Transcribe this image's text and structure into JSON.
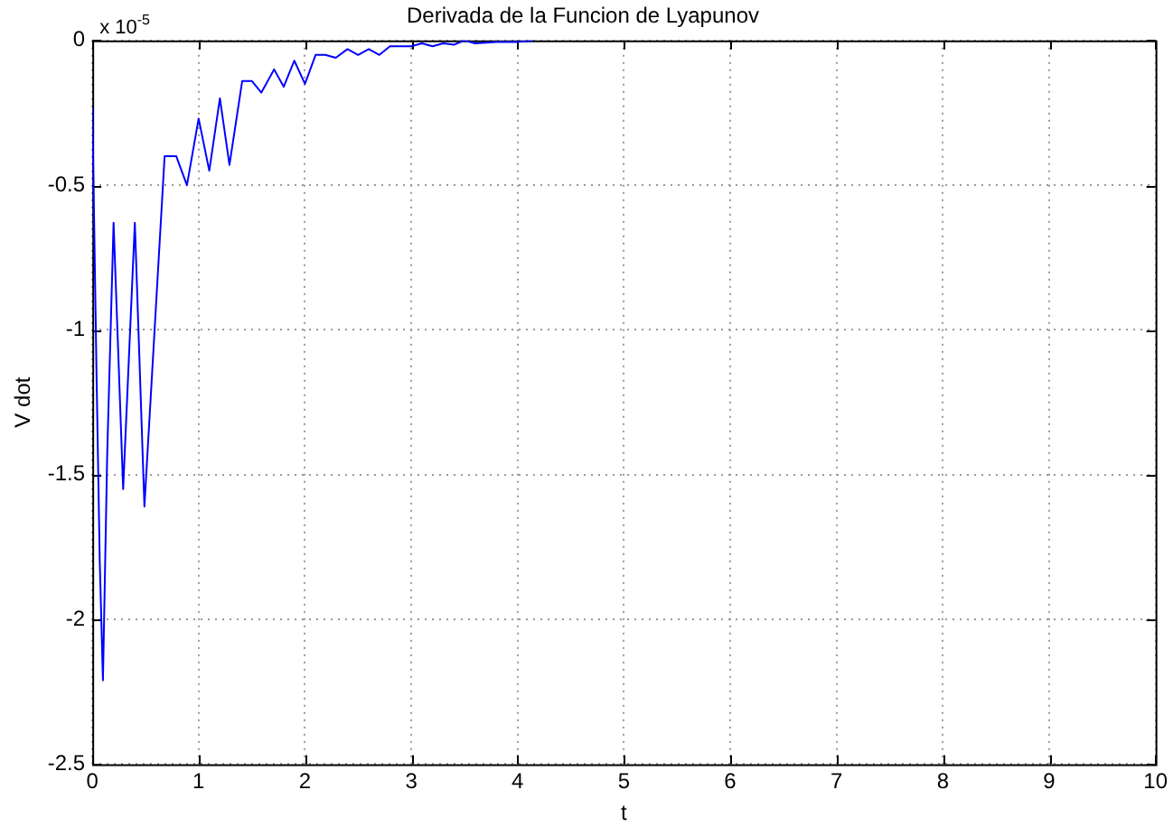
{
  "chart_data": {
    "type": "line",
    "title": "Derivada de la Funcion de Lyapunov",
    "xlabel": "t",
    "ylabel": "V dot",
    "annotations": [
      "x 10$^{-5}$"
    ],
    "x": [
      0,
      0.04,
      0.07,
      0.1,
      0.14,
      0.2,
      0.29,
      0.4,
      0.49,
      0.68,
      0.79,
      0.89,
      1.0,
      1.1,
      1.2,
      1.29,
      1.41,
      1.5,
      1.59,
      1.71,
      1.8,
      1.9,
      2.0,
      2.1,
      2.19,
      2.29,
      2.4,
      2.5,
      2.6,
      2.7,
      2.8,
      2.9,
      3.0,
      3.1,
      3.2,
      3.3,
      3.4,
      3.5,
      3.6,
      3.8,
      4.0,
      4.15
    ],
    "series": [
      {
        "color": "#0000ff",
        "values": [
          -0.23,
          -1.16,
          -1.8,
          -2.21,
          -1.43,
          -0.63,
          -1.55,
          -0.63,
          -1.61,
          -0.4,
          -0.4,
          -0.5,
          -0.27,
          -0.45,
          -0.2,
          -0.43,
          -0.14,
          -0.14,
          -0.18,
          -0.1,
          -0.16,
          -0.07,
          -0.15,
          -0.05,
          -0.05,
          -0.06,
          -0.03,
          -0.05,
          -0.03,
          -0.05,
          -0.02,
          -0.02,
          -0.02,
          -0.01,
          -0.02,
          -0.01,
          -0.015,
          0,
          -0.01,
          -0.005,
          -0.005,
          0
        ]
      }
    ],
    "xlim": [
      0,
      10
    ],
    "xticks": [
      0,
      1,
      2,
      3,
      4,
      5,
      6,
      7,
      8,
      9,
      10
    ],
    "ylim": [
      -2.5,
      0
    ],
    "yticks": [
      -2.5,
      -2,
      -1.5,
      -1,
      -0.5,
      0
    ],
    "grid": true,
    "legend": false,
    "marker": "none",
    "line_style": "solid"
  }
}
